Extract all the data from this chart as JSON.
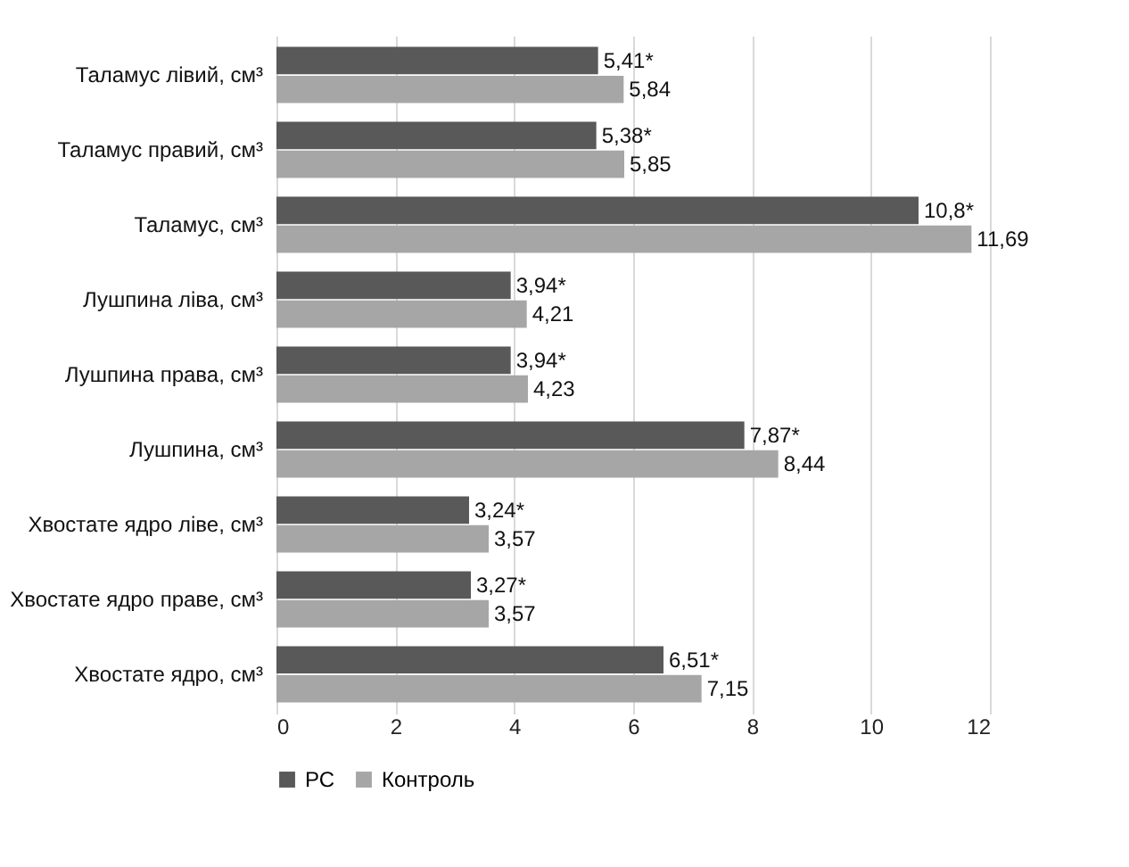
{
  "chart_data": {
    "type": "bar",
    "orientation": "horizontal",
    "categories": [
      "Таламус лівий, см³",
      "Таламус правий, см³",
      "Таламус, см³",
      "Лушпина ліва, см³",
      "Лушпина права, см³",
      "Лушпина, см³",
      "Хвостате ядро ліве, см³",
      "Хвостате ядро праве, см³",
      "Хвостате ядро, см³"
    ],
    "series": [
      {
        "name": "РС",
        "color": "#595959",
        "values": [
          5.41,
          5.38,
          10.8,
          3.94,
          3.94,
          7.87,
          3.24,
          3.27,
          6.51
        ],
        "value_labels": [
          "5,41*",
          "5,38*",
          "10,8*",
          "3,94*",
          "3,94*",
          "7,87*",
          "3,24*",
          "3,27*",
          "6,51*"
        ]
      },
      {
        "name": "Контроль",
        "color": "#a6a6a6",
        "values": [
          5.84,
          5.85,
          11.69,
          4.21,
          4.23,
          8.44,
          3.57,
          3.57,
          7.15
        ],
        "value_labels": [
          "5,84",
          "5,85",
          "11,69",
          "4,21",
          "4,23",
          "8,44",
          "3,57",
          "3,57",
          "7,15"
        ]
      }
    ],
    "xlim": [
      0,
      12
    ],
    "xticks": [
      0,
      2,
      4,
      6,
      8,
      10,
      12
    ],
    "grid": "x",
    "legend": "bottom"
  }
}
